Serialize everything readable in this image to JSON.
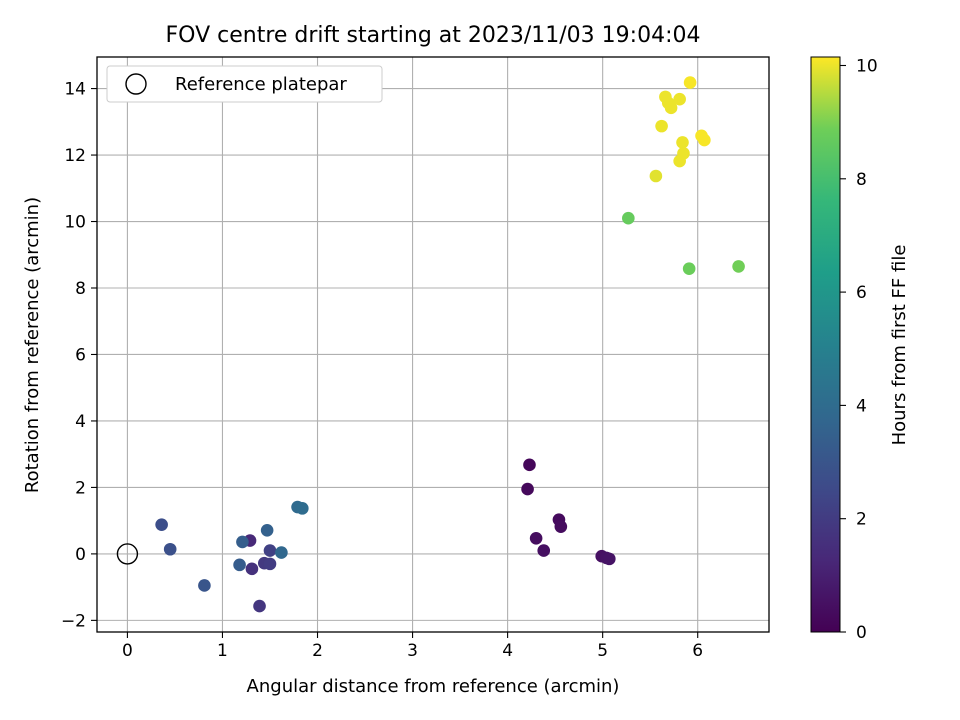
{
  "chart_data": {
    "type": "scatter",
    "title": "FOV centre drift starting at 2023/11/03 19:04:04",
    "xlabel": "Angular distance from reference (arcmin)",
    "ylabel": "Rotation from reference (arcmin)",
    "xlim": [
      -0.32,
      6.75
    ],
    "ylim": [
      -2.35,
      14.95
    ],
    "xticks": [
      0,
      1,
      2,
      3,
      4,
      5,
      6
    ],
    "yticks": [
      -2,
      0,
      2,
      4,
      6,
      8,
      10,
      12,
      14
    ],
    "grid": true,
    "legend": {
      "placement": "top-left",
      "entries": [
        "Reference platepar"
      ]
    },
    "reference_point": {
      "x": 0,
      "y": 0,
      "label": "Reference platepar"
    },
    "colorbar": {
      "label": "Hours from first FF file",
      "range": [
        0,
        10.15
      ],
      "ticks": [
        0,
        2,
        4,
        6,
        8,
        10
      ],
      "colormap": "viridis"
    },
    "points": [
      {
        "x": 4.23,
        "y": 2.68,
        "c": 0.2
      },
      {
        "x": 4.21,
        "y": 1.95,
        "c": 0.25
      },
      {
        "x": 4.54,
        "y": 1.03,
        "c": 0.3
      },
      {
        "x": 4.56,
        "y": 0.82,
        "c": 0.35
      },
      {
        "x": 4.3,
        "y": 0.47,
        "c": 0.4
      },
      {
        "x": 4.38,
        "y": 0.1,
        "c": 0.45
      },
      {
        "x": 4.99,
        "y": -0.07,
        "c": 0.5
      },
      {
        "x": 5.04,
        "y": -0.12,
        "c": 0.55
      },
      {
        "x": 5.07,
        "y": -0.15,
        "c": 0.6
      },
      {
        "x": 1.29,
        "y": 0.4,
        "c": 1.3
      },
      {
        "x": 1.31,
        "y": -0.45,
        "c": 1.6
      },
      {
        "x": 1.39,
        "y": -1.57,
        "c": 1.8
      },
      {
        "x": 1.44,
        "y": -0.28,
        "c": 1.9
      },
      {
        "x": 1.5,
        "y": -0.3,
        "c": 2.0
      },
      {
        "x": 1.5,
        "y": 0.1,
        "c": 2.2
      },
      {
        "x": 0.36,
        "y": 0.88,
        "c": 2.7
      },
      {
        "x": 0.45,
        "y": 0.14,
        "c": 2.8
      },
      {
        "x": 0.81,
        "y": -0.95,
        "c": 3.0
      },
      {
        "x": 1.18,
        "y": -0.33,
        "c": 3.3
      },
      {
        "x": 1.21,
        "y": 0.36,
        "c": 3.4
      },
      {
        "x": 1.47,
        "y": 0.71,
        "c": 3.5
      },
      {
        "x": 1.62,
        "y": 0.04,
        "c": 3.8
      },
      {
        "x": 1.79,
        "y": 1.41,
        "c": 3.9
      },
      {
        "x": 1.84,
        "y": 1.37,
        "c": 4.0
      },
      {
        "x": 5.27,
        "y": 10.1,
        "c": 8.7
      },
      {
        "x": 5.91,
        "y": 8.58,
        "c": 8.8
      },
      {
        "x": 6.43,
        "y": 8.65,
        "c": 8.9
      },
      {
        "x": 5.56,
        "y": 11.37,
        "c": 9.9
      },
      {
        "x": 5.62,
        "y": 12.87,
        "c": 10.0
      },
      {
        "x": 5.66,
        "y": 13.75,
        "c": 10.0
      },
      {
        "x": 5.69,
        "y": 13.57,
        "c": 10.0
      },
      {
        "x": 5.72,
        "y": 13.42,
        "c": 10.0
      },
      {
        "x": 5.81,
        "y": 13.68,
        "c": 10.0
      },
      {
        "x": 5.84,
        "y": 12.38,
        "c": 10.0
      },
      {
        "x": 5.85,
        "y": 12.05,
        "c": 10.0
      },
      {
        "x": 5.81,
        "y": 11.82,
        "c": 10.0
      },
      {
        "x": 5.92,
        "y": 14.18,
        "c": 10.1
      },
      {
        "x": 6.04,
        "y": 12.58,
        "c": 10.1
      },
      {
        "x": 6.07,
        "y": 12.45,
        "c": 10.1
      }
    ]
  }
}
